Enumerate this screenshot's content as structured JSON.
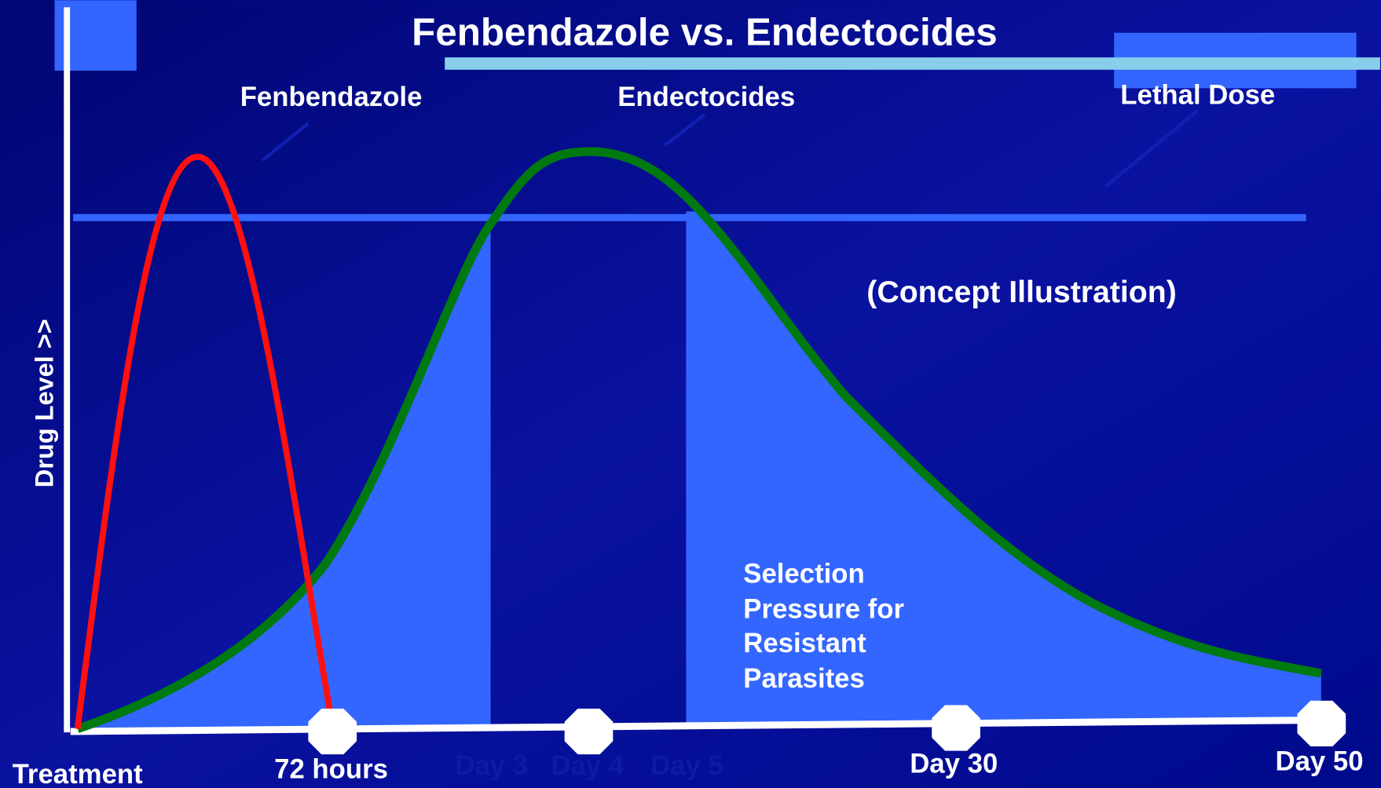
{
  "title": "Fenbendazole vs. Endectocides",
  "curve_labels": {
    "fenbendazole": "Fenbendazole",
    "endectocides": "Endectocides",
    "lethal_dose": "Lethal Dose"
  },
  "note": "(Concept Illustration)",
  "y_axis_label": "Drug Level >>",
  "selection_text": [
    "Selection",
    "Pressure for",
    "Resistant",
    "Parasites"
  ],
  "x_labels": {
    "treatment": "Treatment",
    "hours_72": "72 hours",
    "day3": "Day 3",
    "day4": "Day 4",
    "day5": "Day 5",
    "day30": "Day 30",
    "day50": "Day 50"
  }
}
